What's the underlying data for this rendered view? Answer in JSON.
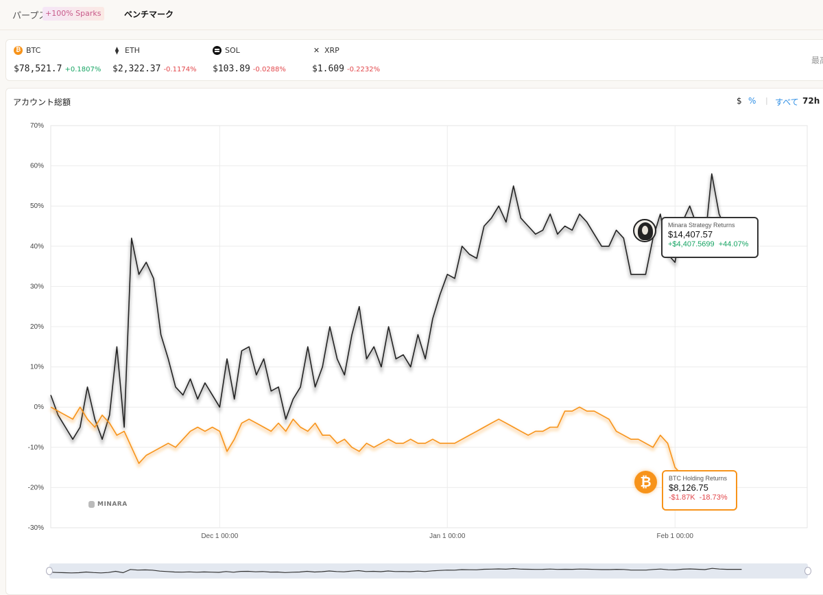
{
  "header": {
    "tab_perps": "パープス",
    "sparks_badge": "+100% Sparks",
    "tab_benchmark": "ベンチマーク"
  },
  "tickers": [
    {
      "symbol": "BTC",
      "price": "$78,521.7",
      "change": "+0.1807%",
      "direction": "up",
      "icon": "bitcoin-icon"
    },
    {
      "symbol": "ETH",
      "price": "$2,322.37",
      "change": "-0.1174%",
      "direction": "down",
      "icon": "ethereum-icon"
    },
    {
      "symbol": "SOL",
      "price": "$103.89",
      "change": "-0.0288%",
      "direction": "down",
      "icon": "solana-icon"
    },
    {
      "symbol": "XRP",
      "price": "$1.609",
      "change": "-0.2232%",
      "direction": "down",
      "icon": "xrp-icon"
    }
  ],
  "ticker_more_label": "最高",
  "chart_panel": {
    "title": "アカウント総額",
    "controls": {
      "dollar": "$",
      "percent": "%",
      "all": "すべて",
      "h72": "72h"
    },
    "watermark": "MINARA"
  },
  "tooltips": {
    "strategy": {
      "name": "Minara Strategy Returns",
      "value": "$14,407.57",
      "change_abs": "+$4,407.5699",
      "change_pct": "+44.07%"
    },
    "btc": {
      "name": "BTC Holding Returns",
      "value": "$8,126.75",
      "change_abs": "-$1.87K",
      "change_pct": "-18.73%"
    }
  },
  "colors": {
    "strategy_line": "#222222",
    "btc_line": "#f7931a",
    "up": "#16a463",
    "down": "#e2474b",
    "accent": "#2f8fe5"
  },
  "chart_data": {
    "type": "line",
    "ylabel": "",
    "xlabel": "",
    "ylim": [
      -30,
      70
    ],
    "y_ticks": [
      "70%",
      "60%",
      "50%",
      "40%",
      "30%",
      "20%",
      "10%",
      "0%",
      "-10%",
      "-20%",
      "-30%"
    ],
    "x_ticks": [
      "Dec 1 00:00",
      "Jan 1 00:00",
      "Feb 1 00:00"
    ],
    "x_tick_days": [
      25,
      56,
      87
    ],
    "x_range_days": [
      2,
      105
    ],
    "grid": true,
    "series": [
      {
        "name": "Minara Strategy Returns",
        "points": [
          [
            2,
            3
          ],
          [
            3,
            -2
          ],
          [
            4,
            -5
          ],
          [
            5,
            -8
          ],
          [
            6,
            -5
          ],
          [
            7,
            5
          ],
          [
            8,
            -3
          ],
          [
            9,
            -8
          ],
          [
            10,
            -2
          ],
          [
            11,
            15
          ],
          [
            12,
            -5
          ],
          [
            13,
            42
          ],
          [
            14,
            33
          ],
          [
            15,
            36
          ],
          [
            16,
            32
          ],
          [
            17,
            18
          ],
          [
            18,
            12
          ],
          [
            19,
            5
          ],
          [
            20,
            3
          ],
          [
            21,
            7
          ],
          [
            22,
            2
          ],
          [
            23,
            6
          ],
          [
            24,
            3
          ],
          [
            25,
            0
          ],
          [
            26,
            12
          ],
          [
            27,
            2
          ],
          [
            28,
            14
          ],
          [
            29,
            15
          ],
          [
            30,
            8
          ],
          [
            31,
            12
          ],
          [
            32,
            4
          ],
          [
            33,
            5
          ],
          [
            34,
            -3
          ],
          [
            35,
            2
          ],
          [
            36,
            5
          ],
          [
            37,
            15
          ],
          [
            38,
            5
          ],
          [
            39,
            10
          ],
          [
            40,
            20
          ],
          [
            41,
            12
          ],
          [
            42,
            8
          ],
          [
            43,
            18
          ],
          [
            44,
            25
          ],
          [
            45,
            12
          ],
          [
            46,
            15
          ],
          [
            47,
            10
          ],
          [
            48,
            20
          ],
          [
            49,
            12
          ],
          [
            50,
            13
          ],
          [
            51,
            10
          ],
          [
            52,
            18
          ],
          [
            53,
            12
          ],
          [
            54,
            22
          ],
          [
            55,
            28
          ],
          [
            56,
            33
          ],
          [
            57,
            32
          ],
          [
            58,
            40
          ],
          [
            59,
            38
          ],
          [
            60,
            37
          ],
          [
            61,
            45
          ],
          [
            62,
            47
          ],
          [
            63,
            50
          ],
          [
            64,
            46
          ],
          [
            65,
            55
          ],
          [
            66,
            47
          ],
          [
            67,
            45
          ],
          [
            68,
            43
          ],
          [
            69,
            44
          ],
          [
            70,
            48
          ],
          [
            71,
            43
          ],
          [
            72,
            45
          ],
          [
            73,
            44
          ],
          [
            74,
            48
          ],
          [
            75,
            46
          ],
          [
            76,
            43
          ],
          [
            77,
            40
          ],
          [
            78,
            40
          ],
          [
            79,
            44
          ],
          [
            80,
            42
          ],
          [
            81,
            33
          ],
          [
            82,
            33
          ],
          [
            83,
            33
          ],
          [
            84,
            42
          ],
          [
            85,
            48
          ],
          [
            86,
            38
          ],
          [
            87,
            36
          ],
          [
            88,
            46
          ],
          [
            89,
            50
          ],
          [
            90,
            45
          ],
          [
            91,
            40
          ],
          [
            92,
            58
          ],
          [
            93,
            48
          ],
          [
            94,
            44
          ],
          [
            95,
            44
          ],
          [
            96,
            44
          ]
        ],
        "end_label": "$14,407.57"
      },
      {
        "name": "BTC Holding Returns",
        "points": [
          [
            2,
            0
          ],
          [
            3,
            -1
          ],
          [
            4,
            -2
          ],
          [
            5,
            -3
          ],
          [
            6,
            0
          ],
          [
            7,
            -3
          ],
          [
            8,
            -5
          ],
          [
            9,
            -2
          ],
          [
            10,
            -4
          ],
          [
            11,
            -7
          ],
          [
            12,
            -6
          ],
          [
            13,
            -10
          ],
          [
            14,
            -14
          ],
          [
            15,
            -12
          ],
          [
            16,
            -11
          ],
          [
            17,
            -10
          ],
          [
            18,
            -9
          ],
          [
            19,
            -10
          ],
          [
            20,
            -8
          ],
          [
            21,
            -6
          ],
          [
            22,
            -5
          ],
          [
            23,
            -6
          ],
          [
            24,
            -5
          ],
          [
            25,
            -6
          ],
          [
            26,
            -11
          ],
          [
            27,
            -8
          ],
          [
            28,
            -4
          ],
          [
            29,
            -3
          ],
          [
            30,
            -4
          ],
          [
            31,
            -5
          ],
          [
            32,
            -6
          ],
          [
            33,
            -4
          ],
          [
            34,
            -6
          ],
          [
            35,
            -3
          ],
          [
            36,
            -5
          ],
          [
            37,
            -6
          ],
          [
            38,
            -4
          ],
          [
            39,
            -7
          ],
          [
            40,
            -7
          ],
          [
            41,
            -9
          ],
          [
            42,
            -8
          ],
          [
            43,
            -10
          ],
          [
            44,
            -11
          ],
          [
            45,
            -9
          ],
          [
            46,
            -10
          ],
          [
            47,
            -9
          ],
          [
            48,
            -8
          ],
          [
            49,
            -9
          ],
          [
            50,
            -9
          ],
          [
            51,
            -8
          ],
          [
            52,
            -9
          ],
          [
            53,
            -9
          ],
          [
            54,
            -8
          ],
          [
            55,
            -9
          ],
          [
            56,
            -9
          ],
          [
            57,
            -9
          ],
          [
            58,
            -8
          ],
          [
            59,
            -7
          ],
          [
            60,
            -6
          ],
          [
            61,
            -5
          ],
          [
            62,
            -4
          ],
          [
            63,
            -3
          ],
          [
            64,
            -4
          ],
          [
            65,
            -5
          ],
          [
            66,
            -6
          ],
          [
            67,
            -7
          ],
          [
            68,
            -6
          ],
          [
            69,
            -6
          ],
          [
            70,
            -5
          ],
          [
            71,
            -5
          ],
          [
            72,
            -1
          ],
          [
            73,
            -1
          ],
          [
            74,
            0
          ],
          [
            75,
            -1
          ],
          [
            76,
            -1
          ],
          [
            77,
            -2
          ],
          [
            78,
            -3
          ],
          [
            79,
            -6
          ],
          [
            80,
            -7
          ],
          [
            81,
            -8
          ],
          [
            82,
            -8
          ],
          [
            83,
            -9
          ],
          [
            84,
            -10
          ],
          [
            85,
            -7
          ],
          [
            86,
            -9
          ],
          [
            87,
            -15
          ],
          [
            88,
            -17
          ],
          [
            89,
            -19
          ],
          [
            90,
            -21
          ],
          [
            91,
            -20
          ],
          [
            92,
            -19
          ],
          [
            93,
            -19
          ]
        ],
        "end_label": "$8,126.75"
      }
    ]
  }
}
